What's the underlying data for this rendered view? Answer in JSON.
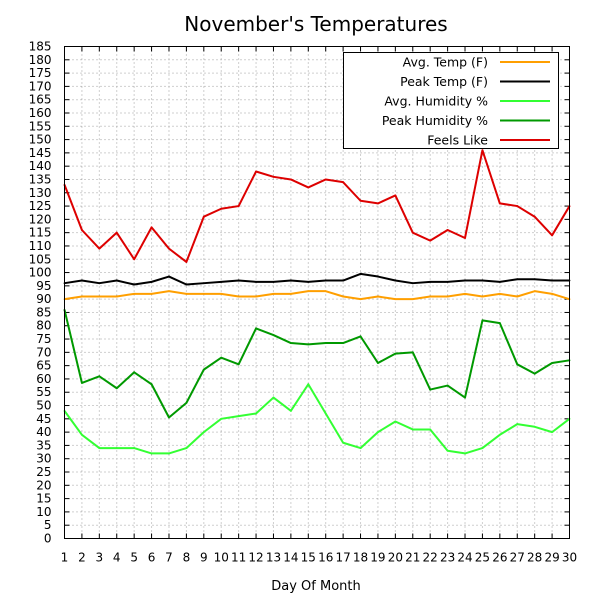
{
  "chart_data": {
    "type": "line",
    "title": "November's Temperatures",
    "xlabel": "Day Of Month",
    "ylabel": "",
    "xlim": [
      1,
      30
    ],
    "ylim": [
      0,
      185
    ],
    "yticks": [
      0,
      5,
      10,
      15,
      20,
      25,
      30,
      35,
      40,
      45,
      50,
      55,
      60,
      65,
      70,
      75,
      80,
      85,
      90,
      95,
      100,
      105,
      110,
      115,
      120,
      125,
      130,
      135,
      140,
      145,
      150,
      155,
      160,
      165,
      170,
      175,
      180,
      185
    ],
    "x": [
      1,
      2,
      3,
      4,
      5,
      6,
      7,
      8,
      9,
      10,
      11,
      12,
      13,
      14,
      15,
      16,
      17,
      18,
      19,
      20,
      21,
      22,
      23,
      24,
      25,
      26,
      27,
      28,
      29,
      30
    ],
    "grid": true,
    "legend_position": "top-right",
    "series": [
      {
        "name": "Avg. Temp (F)",
        "color": "#ff9f00",
        "values": [
          90,
          91,
          91,
          91,
          92,
          92,
          93,
          92,
          92,
          92,
          91,
          91,
          92,
          92,
          93,
          93,
          91,
          90,
          91,
          90,
          90,
          91,
          91,
          92,
          91,
          92,
          91,
          93,
          92,
          90
        ]
      },
      {
        "name": "Peak Temp (F)",
        "color": "#000000",
        "values": [
          96,
          97,
          96,
          97,
          95.5,
          96.5,
          98.5,
          95.5,
          96,
          96.5,
          97,
          96.5,
          96.5,
          97,
          96.5,
          97,
          97,
          99.5,
          98.5,
          97,
          96,
          96.5,
          96.5,
          97,
          97,
          96.5,
          97.5,
          97.5,
          97,
          97
        ]
      },
      {
        "name": "Avg. Humidity %",
        "color": "#33ff33",
        "values": [
          48,
          39,
          34,
          34,
          34,
          32,
          32,
          34,
          40,
          45,
          46,
          47,
          53,
          48,
          58,
          47,
          36,
          34,
          40,
          44,
          41,
          41,
          33,
          32,
          34,
          39,
          43,
          42,
          40,
          45
        ]
      },
      {
        "name": "Peak Humidity %",
        "color": "#009900",
        "values": [
          86,
          58.5,
          61,
          56.5,
          62.5,
          58,
          45.5,
          51,
          63.5,
          68,
          65.5,
          79,
          76.5,
          73.5,
          73,
          73.5,
          73.5,
          76,
          66,
          69.5,
          70,
          56,
          57.5,
          53,
          82,
          81,
          65.5,
          62,
          66,
          67
        ]
      },
      {
        "name": "Feels Like",
        "color": "#dd0000",
        "values": [
          133,
          116,
          109,
          115,
          105,
          117,
          109,
          104,
          121,
          124,
          125,
          138,
          136,
          135,
          132,
          135,
          134,
          127,
          126,
          129,
          115,
          112,
          116,
          113,
          146,
          126,
          125,
          121,
          114,
          125
        ]
      }
    ]
  }
}
